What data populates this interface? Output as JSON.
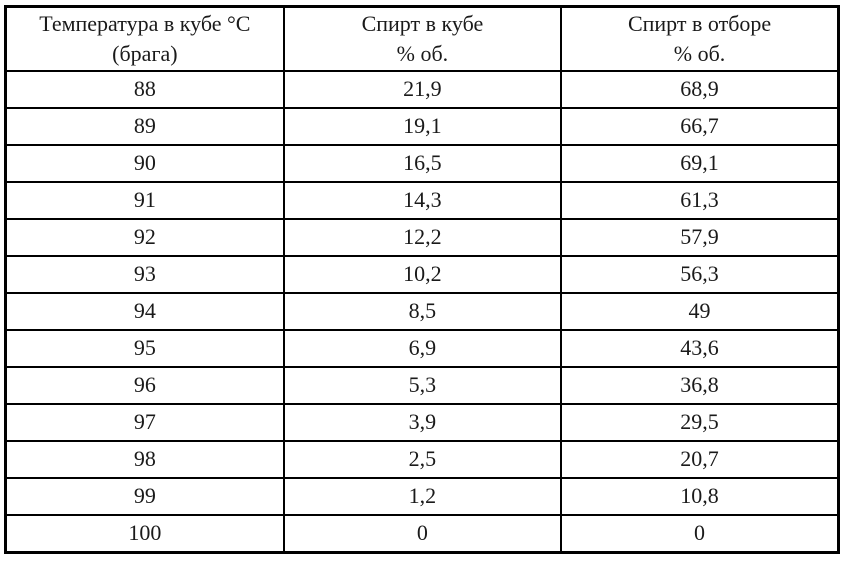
{
  "table": {
    "headers": [
      {
        "line1": "Температура в кубе °С",
        "line2": "(брага)"
      },
      {
        "line1": "Спирт в кубе",
        "line2": "% об."
      },
      {
        "line1": "Спирт в отборе",
        "line2": "% об."
      }
    ],
    "rows": [
      [
        "88",
        "21,9",
        "68,9"
      ],
      [
        "89",
        "19,1",
        "66,7"
      ],
      [
        "90",
        "16,5",
        "69,1"
      ],
      [
        "91",
        "14,3",
        "61,3"
      ],
      [
        "92",
        "12,2",
        "57,9"
      ],
      [
        "93",
        "10,2",
        "56,3"
      ],
      [
        "94",
        "8,5",
        "49"
      ],
      [
        "95",
        "6,9",
        "43,6"
      ],
      [
        "96",
        "5,3",
        "36,8"
      ],
      [
        "97",
        "3,9",
        "29,5"
      ],
      [
        "98",
        "2,5",
        "20,7"
      ],
      [
        "99",
        "1,2",
        "10,8"
      ],
      [
        "100",
        "0",
        "0"
      ]
    ],
    "colors": {
      "border": "#000000",
      "text": "#1a1a1a",
      "background": "#ffffff"
    }
  }
}
